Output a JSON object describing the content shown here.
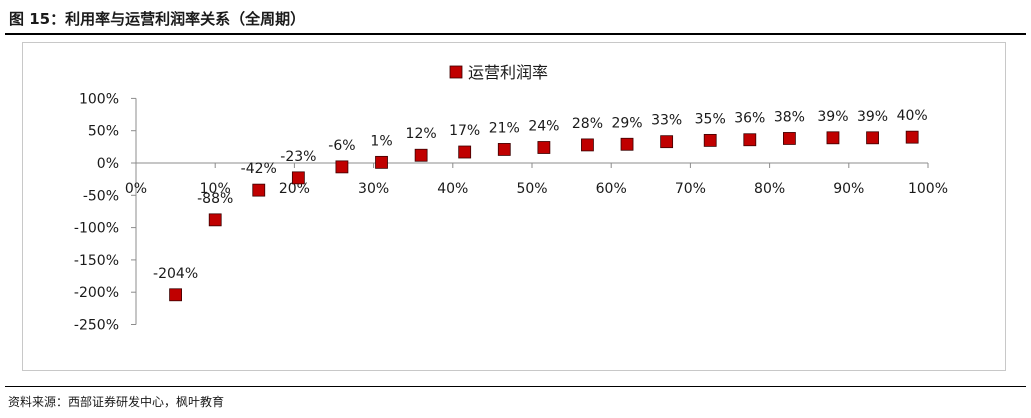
{
  "figure": {
    "title": "图 15：利用率与运营利润率关系（全周期）",
    "source": "资料来源：西部证券研发中心，枫叶教育"
  },
  "colors": {
    "marker": "#c00000",
    "marker_stroke": "#3a0000",
    "axis": "#8c8c8c"
  },
  "chart_data": {
    "type": "scatter",
    "title": "",
    "xlabel": "",
    "ylabel": "",
    "xlim": [
      0,
      100
    ],
    "ylim": [
      -250,
      100
    ],
    "x_ticks": [
      "0%",
      "10%",
      "20%",
      "30%",
      "40%",
      "50%",
      "60%",
      "70%",
      "80%",
      "90%",
      "100%"
    ],
    "y_ticks": [
      "100%",
      "50%",
      "0%",
      "-50%",
      "-100%",
      "-150%",
      "-200%",
      "-250%"
    ],
    "legend": {
      "position": "top-center",
      "entries": [
        "运营利润率"
      ]
    },
    "grid": false,
    "series": [
      {
        "name": "运营利润率",
        "points": [
          {
            "x": 5,
            "y": -204,
            "label": "-204%"
          },
          {
            "x": 10,
            "y": -88,
            "label": "-88%"
          },
          {
            "x": 15.5,
            "y": -42,
            "label": "-42%"
          },
          {
            "x": 20.5,
            "y": -23,
            "label": "-23%"
          },
          {
            "x": 26,
            "y": -6,
            "label": "-6%"
          },
          {
            "x": 31,
            "y": 1,
            "label": "1%"
          },
          {
            "x": 36,
            "y": 12,
            "label": "12%"
          },
          {
            "x": 41.5,
            "y": 17,
            "label": "17%"
          },
          {
            "x": 46.5,
            "y": 21,
            "label": "21%"
          },
          {
            "x": 51.5,
            "y": 24,
            "label": "24%"
          },
          {
            "x": 57,
            "y": 28,
            "label": "28%"
          },
          {
            "x": 62,
            "y": 29,
            "label": "29%"
          },
          {
            "x": 67,
            "y": 33,
            "label": "33%"
          },
          {
            "x": 72.5,
            "y": 35,
            "label": "35%"
          },
          {
            "x": 77.5,
            "y": 36,
            "label": "36%"
          },
          {
            "x": 82.5,
            "y": 38,
            "label": "38%"
          },
          {
            "x": 88,
            "y": 39,
            "label": "39%"
          },
          {
            "x": 93,
            "y": 39,
            "label": "39%"
          },
          {
            "x": 98,
            "y": 40,
            "label": "40%"
          }
        ]
      }
    ]
  }
}
